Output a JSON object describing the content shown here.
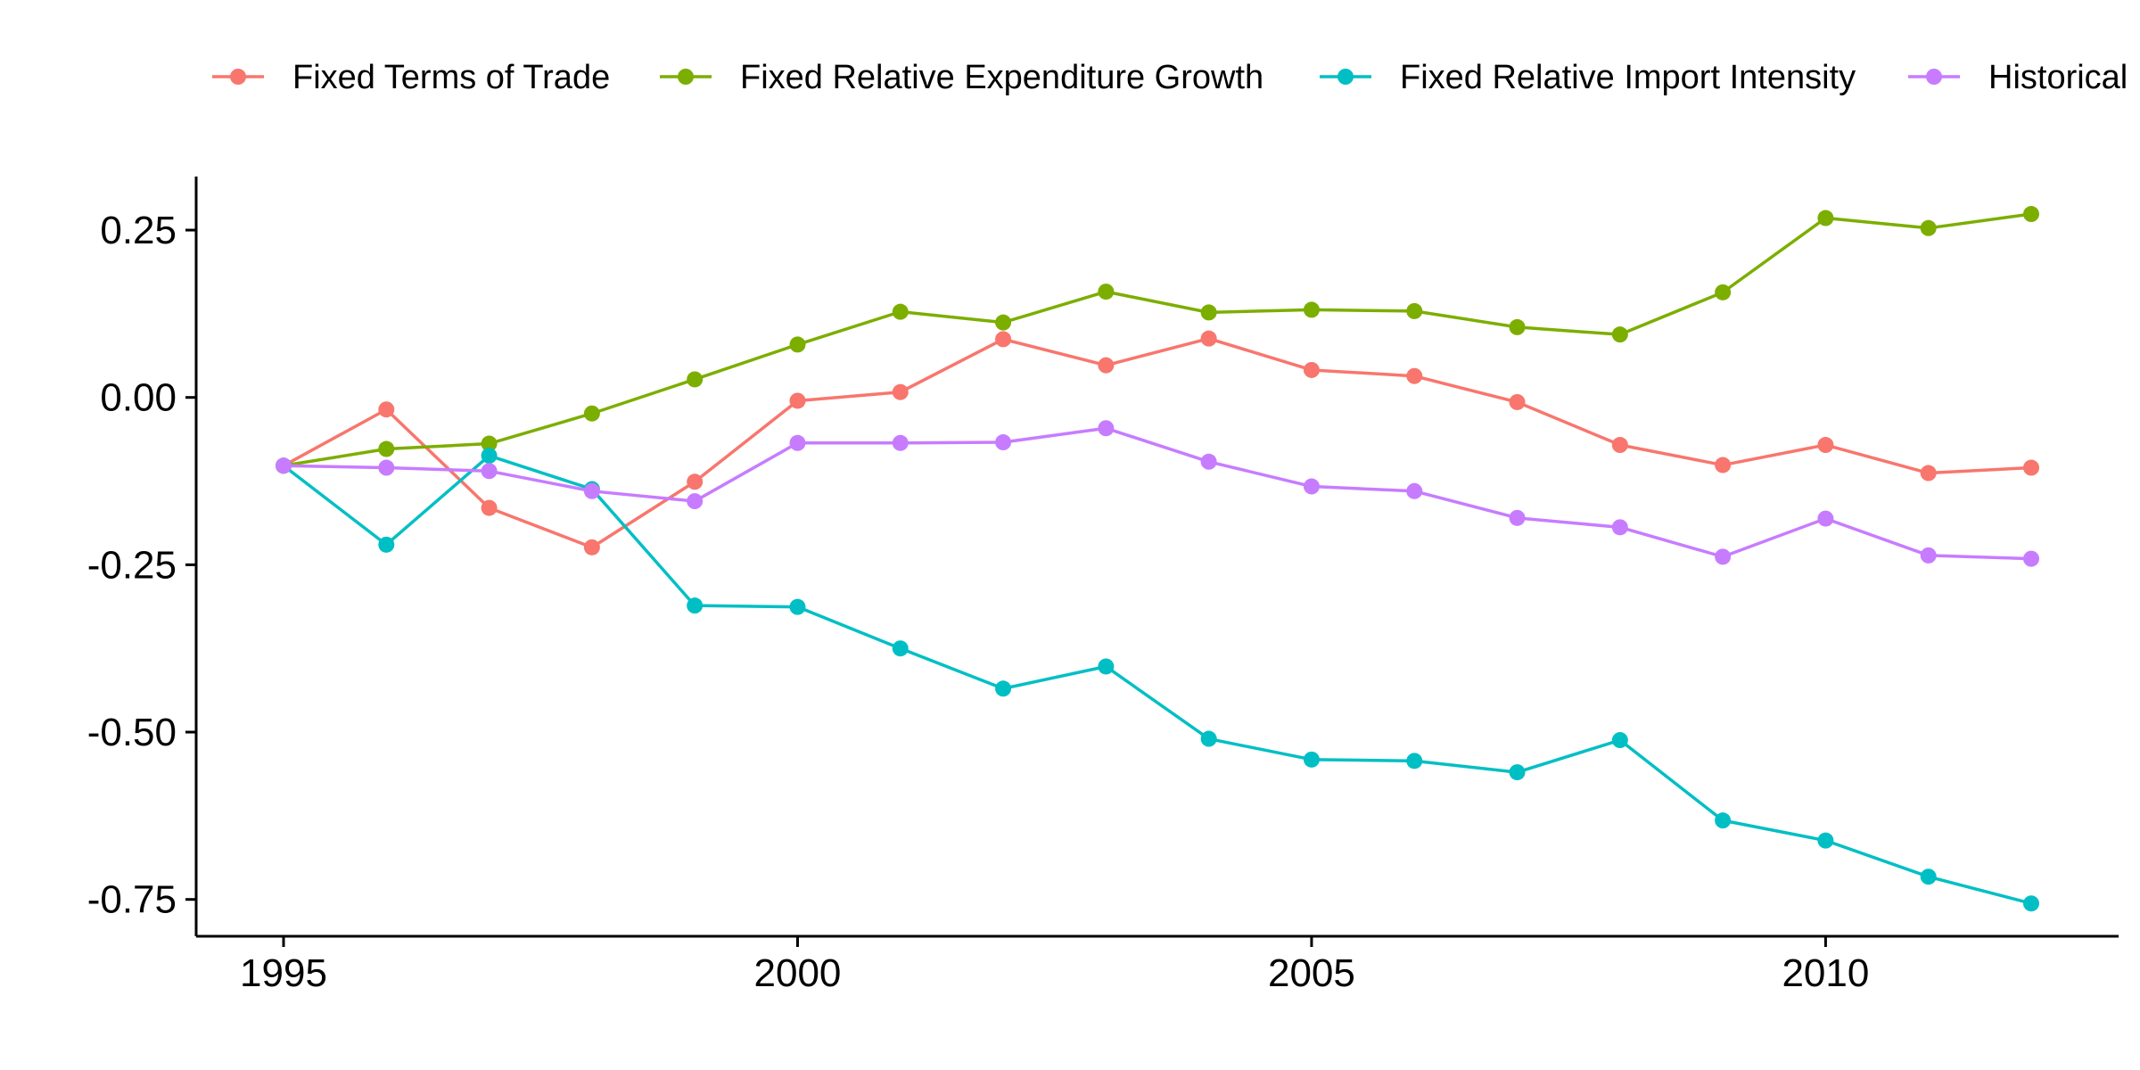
{
  "chart_data": {
    "type": "line",
    "title": "",
    "xlabel": "",
    "ylabel": "",
    "xlim": [
      1994.15,
      2012.85
    ],
    "ylim": [
      -0.805,
      0.33
    ],
    "x_ticks": [
      1995,
      2000,
      2005,
      2010
    ],
    "x_tick_labels": [
      "1995",
      "2000",
      "2005",
      "2010"
    ],
    "y_ticks": [
      0.25,
      0.0,
      -0.25,
      -0.5,
      -0.75
    ],
    "y_tick_labels": [
      "0.25",
      "0.00",
      "-0.25",
      "-0.50",
      "-0.75"
    ],
    "grid": false,
    "legend_position": "top",
    "x": [
      1995,
      1996,
      1997,
      1998,
      1999,
      2000,
      2001,
      2002,
      2003,
      2004,
      2005,
      2006,
      2007,
      2008,
      2009,
      2010,
      2011,
      2012
    ],
    "series": [
      {
        "name": "Fixed Terms of Trade",
        "color": "#F8766D",
        "values": [
          -0.102,
          -0.018,
          -0.165,
          -0.224,
          -0.126,
          -0.005,
          0.008,
          0.087,
          0.048,
          0.088,
          0.041,
          0.032,
          -0.007,
          -0.071,
          -0.101,
          -0.071,
          -0.113,
          -0.105
        ]
      },
      {
        "name": "Fixed Relative Expenditure Growth",
        "color": "#7CAE00",
        "values": [
          -0.102,
          -0.077,
          -0.069,
          -0.024,
          0.027,
          0.079,
          0.128,
          0.112,
          0.158,
          0.127,
          0.131,
          0.129,
          0.105,
          0.094,
          0.157,
          0.268,
          0.253,
          0.274
        ]
      },
      {
        "name": "Fixed Relative Import Intensity",
        "color": "#00BFC4",
        "values": [
          -0.102,
          -0.22,
          -0.087,
          -0.137,
          -0.311,
          -0.313,
          -0.375,
          -0.435,
          -0.402,
          -0.51,
          -0.541,
          -0.543,
          -0.56,
          -0.512,
          -0.632,
          -0.662,
          -0.716,
          -0.756
        ]
      },
      {
        "name": "Historical",
        "color": "#C77CFF",
        "values": [
          -0.102,
          -0.105,
          -0.11,
          -0.14,
          -0.155,
          -0.068,
          -0.068,
          -0.067,
          -0.046,
          -0.096,
          -0.133,
          -0.14,
          -0.18,
          -0.194,
          -0.238,
          -0.181,
          -0.236,
          -0.241
        ]
      }
    ]
  }
}
